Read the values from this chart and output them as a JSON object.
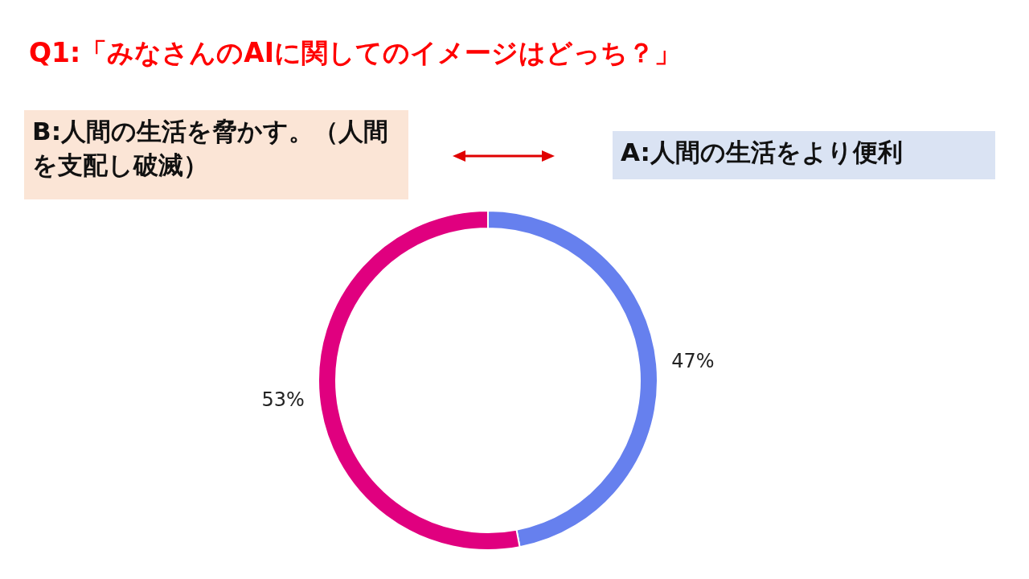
{
  "chart_data": {
    "type": "donut",
    "title": "Q1:「みなさんのAIに関してのイメージはどっち？」",
    "categories": [
      "A:人間の生活をより便利",
      "B:人間の生活を脅かす。（人間を支配し破滅）"
    ],
    "values": [
      47,
      53
    ],
    "colors": [
      "#6680ee",
      "#e0007f"
    ],
    "value_labels": [
      "47%",
      "53%"
    ]
  }
}
